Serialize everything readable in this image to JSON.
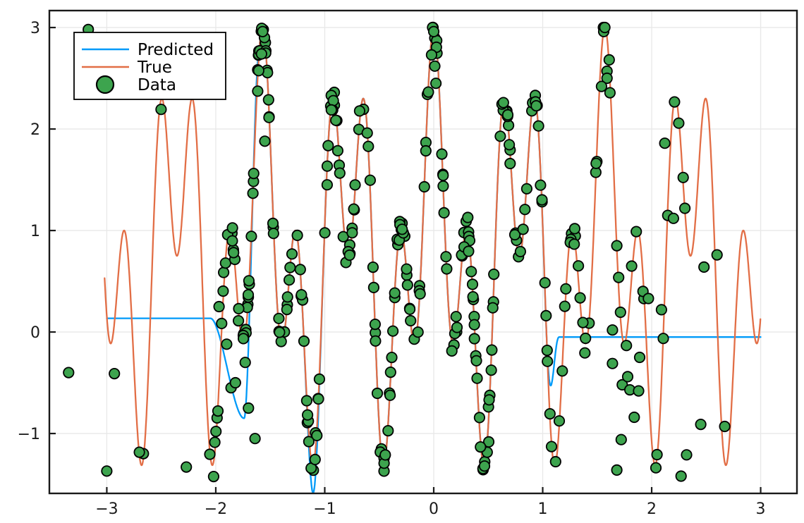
{
  "chart_data": {
    "type": "line+scatter",
    "title": "",
    "xlabel": "",
    "ylabel": "",
    "background_color": "#FFFFFF",
    "frame_color": "#1A1A1A",
    "grid_color": "#E8E8E8",
    "tick_label_color": "#1A1A1A",
    "grid": true,
    "x_axis": {
      "range": [
        -3.527,
        3.333
      ],
      "ticks": [
        -3,
        -2,
        -1,
        0,
        1,
        2,
        3
      ],
      "tick_labels": [
        "−3",
        "−2",
        "−1",
        "0",
        "1",
        "2",
        "3"
      ]
    },
    "y_axis": {
      "range": [
        -1.59,
        3.167
      ],
      "ticks": [
        -1,
        0,
        1,
        2,
        3
      ],
      "tick_labels": [
        "−1",
        "0",
        "1",
        "2",
        "3"
      ]
    },
    "legend": {
      "position": "top-left",
      "border_color": "#000000",
      "background": "#FFFFFF",
      "entries": [
        {
          "label": "Predicted",
          "kind": "line",
          "color": "#009AF9"
        },
        {
          "label": "True",
          "kind": "line",
          "color": "#E26E46"
        },
        {
          "label": "Data",
          "kind": "marker",
          "color": "#3DA44E"
        }
      ]
    },
    "series": [
      {
        "name": "Predicted",
        "type": "line",
        "color": "#009AF9",
        "line_width": 2.3,
        "domain": [
          -3.0,
          3.0
        ],
        "model": {
          "description": "flat left, follows true function in the middle, flat right",
          "flat_left": {
            "level": 0.135,
            "until": -2.05
          },
          "left_dip": {
            "at": -1.74,
            "bottom": -0.85,
            "rejoin_by": -1.6
          },
          "follow_true_until": 1.0,
          "flat_right": {
            "level": -0.05,
            "from": 1.15
          },
          "mismatch_dip": {
            "at": -1.1,
            "amp": -0.28,
            "width": 0.05
          }
        }
      },
      {
        "name": "True",
        "type": "line",
        "color": "#E26E46",
        "line_width": 2.3,
        "domain": [
          -3.02,
          3.0
        ],
        "formula": {
          "offset": 0.75,
          "terms": [
            {
              "amp": 1.125,
              "freq": 8
            },
            {
              "amp": 1.125,
              "freq": 20
            }
          ]
        },
        "formula_text": "f(x) = 0.75 + 1.125*(cos(8x) + cos(20x))",
        "observed_peaks": [
          {
            "x": -1.57,
            "y": 3.0
          },
          {
            "x": 0.0,
            "y": 3.0
          },
          {
            "x": 1.56,
            "y": 3.0
          },
          {
            "x": -0.98,
            "y": 2.4
          },
          {
            "x": -0.59,
            "y": 2.4
          },
          {
            "x": 0.55,
            "y": 2.4
          },
          {
            "x": 0.95,
            "y": 2.35
          },
          {
            "x": 2.15,
            "y": 2.38
          },
          {
            "x": 2.54,
            "y": 2.38
          },
          {
            "x": 2.74,
            "y": 1.0
          },
          {
            "x": -2.83,
            "y": 1.0
          }
        ],
        "observed_range": [
          -1.5,
          3.0
        ]
      },
      {
        "name": "Data",
        "type": "scatter",
        "color": "#3DA44E",
        "marker_stroke": "#000000",
        "marker_radius": 7.2,
        "marker_stroke_width": 1.8,
        "sampling": {
          "seed": 13,
          "noise_sd": 0.07,
          "clip_y": [
            -1.47,
            3.0
          ],
          "regions": [
            {
              "range": [
                -2.08,
                1.08
              ],
              "count": 258
            },
            {
              "range": [
                1.08,
                1.72
              ],
              "count": 26
            },
            {
              "range": [
                1.72,
                2.45
              ],
              "count": 12
            },
            {
              "range": [
                -3.05,
                -2.1
              ],
              "count": 3
            }
          ]
        },
        "anchor_points": [
          [
            -3.35,
            -0.4
          ],
          [
            -3.17,
            2.98
          ],
          [
            -3.0,
            -1.37
          ],
          [
            -2.93,
            -0.41
          ],
          [
            -2.27,
            -1.33
          ],
          [
            -1.97,
            0.25
          ],
          [
            -1.9,
            -0.12
          ],
          [
            -1.86,
            -0.55
          ],
          [
            -1.82,
            -0.5
          ],
          [
            -1.73,
            -0.3
          ],
          [
            -1.7,
            -0.75
          ],
          [
            -1.64,
            -1.05
          ],
          [
            -1.57,
            2.96
          ],
          [
            -1.58,
            2.74
          ],
          [
            -1.55,
            1.88
          ],
          [
            -0.01,
            3.0
          ],
          [
            0.0,
            2.96
          ],
          [
            -0.02,
            2.73
          ],
          [
            0.01,
            2.62
          ],
          [
            0.02,
            2.45
          ],
          [
            1.56,
            2.96
          ],
          [
            1.57,
            3.0
          ],
          [
            1.59,
            2.57
          ],
          [
            1.59,
            2.5
          ],
          [
            1.54,
            2.42
          ],
          [
            1.64,
            0.02
          ],
          [
            1.64,
            -0.31
          ],
          [
            1.68,
            0.85
          ],
          [
            1.68,
            -1.36
          ],
          [
            1.72,
            -1.06
          ],
          [
            1.73,
            -0.52
          ],
          [
            1.78,
            -0.44
          ],
          [
            1.8,
            -0.57
          ],
          [
            1.84,
            -0.84
          ],
          [
            1.88,
            -0.58
          ],
          [
            1.89,
            -0.25
          ],
          [
            1.92,
            0.4
          ],
          [
            1.97,
            0.33
          ],
          [
            2.09,
            0.22
          ],
          [
            2.12,
            1.86
          ],
          [
            2.2,
            1.12
          ],
          [
            2.27,
            -1.42
          ],
          [
            2.32,
            -1.21
          ],
          [
            2.45,
            -0.91
          ],
          [
            2.48,
            0.64
          ],
          [
            2.6,
            0.76
          ],
          [
            2.67,
            -0.93
          ]
        ]
      }
    ]
  }
}
